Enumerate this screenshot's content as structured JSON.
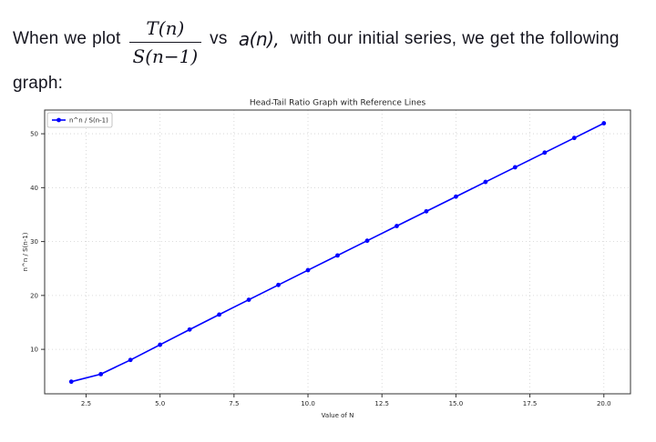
{
  "intro": {
    "text1": "When we plot ",
    "frac_num": "T(n)",
    "frac_den": "S(n−1)",
    "vs": " vs ",
    "an": " a(n), ",
    "text2": " with our initial series, we get the following",
    "text3": "graph:"
  },
  "chart_data": {
    "type": "line",
    "title": "Head-Tail Ratio Graph with Reference Lines",
    "xlabel": "Value of N",
    "ylabel": "n^n / S(n-1)",
    "grid": true,
    "legend_position": "upper left",
    "xlim": [
      1.1,
      20.9
    ],
    "ylim": [
      1.75,
      54.4
    ],
    "xticks": [
      2.5,
      5.0,
      7.5,
      10.0,
      12.5,
      15.0,
      17.5,
      20.0
    ],
    "xtick_labels": [
      "2.5",
      "5.0",
      "7.5",
      "10.0",
      "12.5",
      "15.0",
      "17.5",
      "20.0"
    ],
    "yticks": [
      10,
      20,
      30,
      40,
      50
    ],
    "ytick_labels": [
      "10",
      "20",
      "30",
      "40",
      "50"
    ],
    "series": [
      {
        "name": "n^n / S(n-1)",
        "color": "#0000ff",
        "marker": "circle",
        "x": [
          2,
          3,
          4,
          5,
          6,
          7,
          8,
          9,
          10,
          11,
          12,
          13,
          14,
          15,
          16,
          17,
          18,
          19,
          20
        ],
        "y": [
          4.0,
          5.4,
          8.03,
          10.85,
          13.67,
          16.45,
          19.2,
          21.95,
          24.69,
          27.42,
          30.15,
          32.88,
          35.61,
          38.33,
          41.06,
          43.78,
          46.5,
          49.22,
          51.95
        ]
      }
    ],
    "colors": {
      "grid": "#d0d0d0",
      "spine": "#333333",
      "tick_text": "#262626",
      "title_text": "#262626"
    }
  }
}
